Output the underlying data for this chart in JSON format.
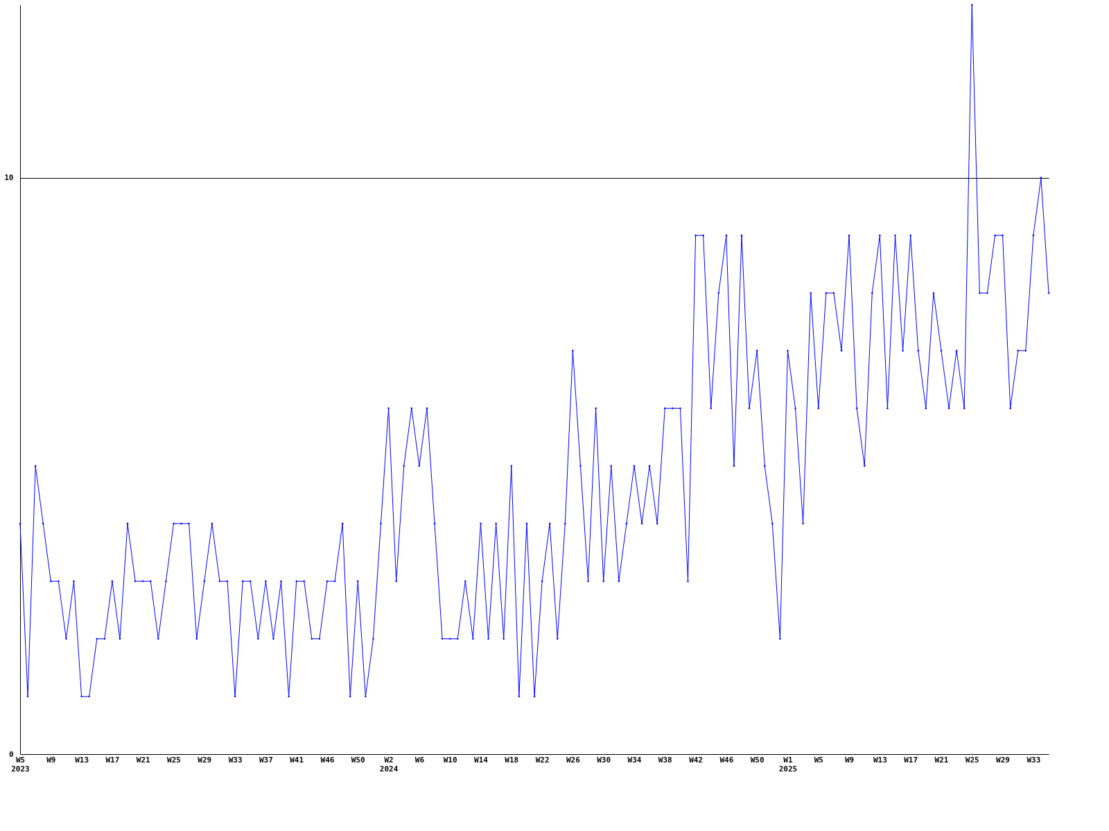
{
  "chart_data": {
    "type": "line",
    "categories": [
      "W5\n2023",
      null,
      null,
      null,
      "W9",
      null,
      null,
      null,
      "W13",
      null,
      null,
      null,
      "W17",
      null,
      null,
      null,
      "W21",
      null,
      null,
      null,
      "W25",
      null,
      null,
      null,
      "W29",
      null,
      null,
      null,
      "W33",
      null,
      null,
      null,
      "W37",
      null,
      null,
      null,
      "W41",
      null,
      null,
      null,
      "W46",
      null,
      null,
      null,
      "W50",
      null,
      null,
      null,
      "W2\n2024",
      null,
      null,
      null,
      "W6",
      null,
      null,
      null,
      "W10",
      null,
      null,
      null,
      "W14",
      null,
      null,
      null,
      "W18",
      null,
      null,
      null,
      "W22",
      null,
      null,
      null,
      "W26",
      null,
      null,
      null,
      "W30",
      null,
      null,
      null,
      "W34",
      null,
      null,
      null,
      "W38",
      null,
      null,
      null,
      "W42",
      null,
      null,
      null,
      "W46",
      null,
      null,
      null,
      "W50",
      null,
      null,
      null,
      "W1\n2025",
      null,
      null,
      null,
      "W5",
      null,
      null,
      null,
      "W9",
      null,
      null,
      null,
      "W13",
      null,
      null,
      null,
      "W17",
      null,
      null,
      null,
      "W21",
      null,
      null,
      null,
      "W25",
      null,
      null,
      null,
      "W29",
      null,
      null,
      null,
      "W33",
      null,
      null
    ],
    "series": [
      {
        "color": "#0000ff",
        "values": [
          4,
          1,
          5,
          4,
          3,
          3,
          2,
          3,
          1,
          1,
          2,
          2,
          3,
          2,
          4,
          3,
          3,
          3,
          2,
          3,
          4,
          4,
          4,
          2,
          3,
          4,
          3,
          3,
          1,
          3,
          3,
          2,
          3,
          2,
          3,
          1,
          3,
          3,
          2,
          2,
          3,
          3,
          4,
          1,
          3,
          1,
          2,
          4,
          6,
          3,
          5,
          6,
          5,
          6,
          4,
          2,
          2,
          2,
          3,
          2,
          4,
          2,
          4,
          2,
          5,
          1,
          4,
          1,
          3,
          4,
          2,
          4,
          7,
          5,
          3,
          6,
          3,
          5,
          3,
          4,
          5,
          4,
          5,
          4,
          6,
          6,
          6,
          3,
          9,
          9,
          6,
          8,
          9,
          5,
          9,
          6,
          7,
          5,
          4,
          2,
          7,
          6,
          4,
          8,
          6,
          8,
          8,
          7,
          9,
          6,
          5,
          8,
          9,
          6,
          9,
          7,
          9,
          7,
          6,
          8,
          7,
          6,
          7,
          6,
          13,
          8,
          8,
          9,
          9,
          6,
          7,
          7,
          9,
          10,
          8
        ]
      }
    ],
    "ylim": [
      0,
      13
    ],
    "yticks": [
      0,
      10
    ],
    "grid": "y",
    "marker": "diamond",
    "line_style": "solid"
  }
}
